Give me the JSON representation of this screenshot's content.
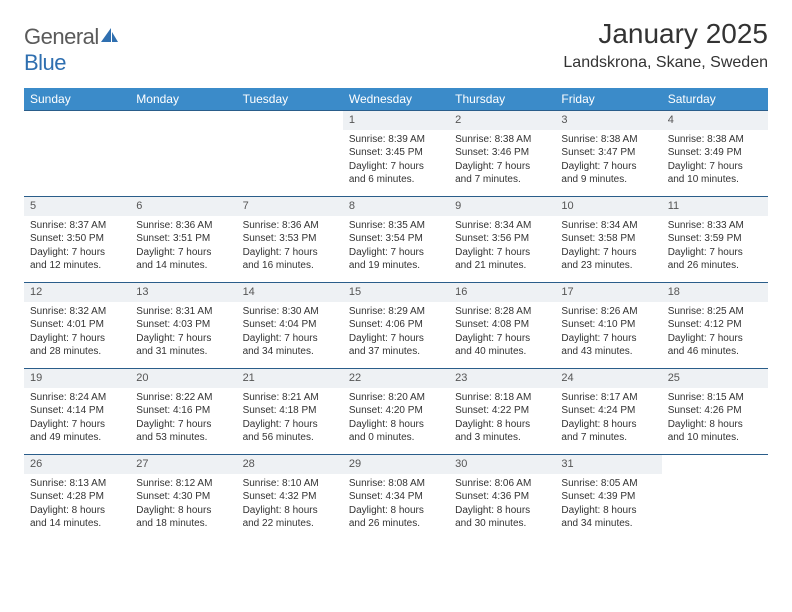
{
  "brand": {
    "part1": "General",
    "part2": "Blue"
  },
  "title": "January 2025",
  "location": "Landskrona, Skane, Sweden",
  "colors": {
    "header_bg": "#3b8bc9",
    "header_text": "#ffffff",
    "daynum_bg": "#eef1f4",
    "border": "#2a5d8a",
    "brand_gray": "#5a5a5a",
    "brand_blue": "#2f6fb0"
  },
  "typography": {
    "title_fontsize": 28,
    "location_fontsize": 16,
    "dayheader_fontsize": 12,
    "cell_fontsize": 10
  },
  "day_headers": [
    "Sunday",
    "Monday",
    "Tuesday",
    "Wednesday",
    "Thursday",
    "Friday",
    "Saturday"
  ],
  "weeks": [
    [
      {
        "n": "",
        "sr": "",
        "ss": "",
        "dl": ""
      },
      {
        "n": "",
        "sr": "",
        "ss": "",
        "dl": ""
      },
      {
        "n": "",
        "sr": "",
        "ss": "",
        "dl": ""
      },
      {
        "n": "1",
        "sr": "Sunrise: 8:39 AM",
        "ss": "Sunset: 3:45 PM",
        "dl": "Daylight: 7 hours and 6 minutes."
      },
      {
        "n": "2",
        "sr": "Sunrise: 8:38 AM",
        "ss": "Sunset: 3:46 PM",
        "dl": "Daylight: 7 hours and 7 minutes."
      },
      {
        "n": "3",
        "sr": "Sunrise: 8:38 AM",
        "ss": "Sunset: 3:47 PM",
        "dl": "Daylight: 7 hours and 9 minutes."
      },
      {
        "n": "4",
        "sr": "Sunrise: 8:38 AM",
        "ss": "Sunset: 3:49 PM",
        "dl": "Daylight: 7 hours and 10 minutes."
      }
    ],
    [
      {
        "n": "5",
        "sr": "Sunrise: 8:37 AM",
        "ss": "Sunset: 3:50 PM",
        "dl": "Daylight: 7 hours and 12 minutes."
      },
      {
        "n": "6",
        "sr": "Sunrise: 8:36 AM",
        "ss": "Sunset: 3:51 PM",
        "dl": "Daylight: 7 hours and 14 minutes."
      },
      {
        "n": "7",
        "sr": "Sunrise: 8:36 AM",
        "ss": "Sunset: 3:53 PM",
        "dl": "Daylight: 7 hours and 16 minutes."
      },
      {
        "n": "8",
        "sr": "Sunrise: 8:35 AM",
        "ss": "Sunset: 3:54 PM",
        "dl": "Daylight: 7 hours and 19 minutes."
      },
      {
        "n": "9",
        "sr": "Sunrise: 8:34 AM",
        "ss": "Sunset: 3:56 PM",
        "dl": "Daylight: 7 hours and 21 minutes."
      },
      {
        "n": "10",
        "sr": "Sunrise: 8:34 AM",
        "ss": "Sunset: 3:58 PM",
        "dl": "Daylight: 7 hours and 23 minutes."
      },
      {
        "n": "11",
        "sr": "Sunrise: 8:33 AM",
        "ss": "Sunset: 3:59 PM",
        "dl": "Daylight: 7 hours and 26 minutes."
      }
    ],
    [
      {
        "n": "12",
        "sr": "Sunrise: 8:32 AM",
        "ss": "Sunset: 4:01 PM",
        "dl": "Daylight: 7 hours and 28 minutes."
      },
      {
        "n": "13",
        "sr": "Sunrise: 8:31 AM",
        "ss": "Sunset: 4:03 PM",
        "dl": "Daylight: 7 hours and 31 minutes."
      },
      {
        "n": "14",
        "sr": "Sunrise: 8:30 AM",
        "ss": "Sunset: 4:04 PM",
        "dl": "Daylight: 7 hours and 34 minutes."
      },
      {
        "n": "15",
        "sr": "Sunrise: 8:29 AM",
        "ss": "Sunset: 4:06 PM",
        "dl": "Daylight: 7 hours and 37 minutes."
      },
      {
        "n": "16",
        "sr": "Sunrise: 8:28 AM",
        "ss": "Sunset: 4:08 PM",
        "dl": "Daylight: 7 hours and 40 minutes."
      },
      {
        "n": "17",
        "sr": "Sunrise: 8:26 AM",
        "ss": "Sunset: 4:10 PM",
        "dl": "Daylight: 7 hours and 43 minutes."
      },
      {
        "n": "18",
        "sr": "Sunrise: 8:25 AM",
        "ss": "Sunset: 4:12 PM",
        "dl": "Daylight: 7 hours and 46 minutes."
      }
    ],
    [
      {
        "n": "19",
        "sr": "Sunrise: 8:24 AM",
        "ss": "Sunset: 4:14 PM",
        "dl": "Daylight: 7 hours and 49 minutes."
      },
      {
        "n": "20",
        "sr": "Sunrise: 8:22 AM",
        "ss": "Sunset: 4:16 PM",
        "dl": "Daylight: 7 hours and 53 minutes."
      },
      {
        "n": "21",
        "sr": "Sunrise: 8:21 AM",
        "ss": "Sunset: 4:18 PM",
        "dl": "Daylight: 7 hours and 56 minutes."
      },
      {
        "n": "22",
        "sr": "Sunrise: 8:20 AM",
        "ss": "Sunset: 4:20 PM",
        "dl": "Daylight: 8 hours and 0 minutes."
      },
      {
        "n": "23",
        "sr": "Sunrise: 8:18 AM",
        "ss": "Sunset: 4:22 PM",
        "dl": "Daylight: 8 hours and 3 minutes."
      },
      {
        "n": "24",
        "sr": "Sunrise: 8:17 AM",
        "ss": "Sunset: 4:24 PM",
        "dl": "Daylight: 8 hours and 7 minutes."
      },
      {
        "n": "25",
        "sr": "Sunrise: 8:15 AM",
        "ss": "Sunset: 4:26 PM",
        "dl": "Daylight: 8 hours and 10 minutes."
      }
    ],
    [
      {
        "n": "26",
        "sr": "Sunrise: 8:13 AM",
        "ss": "Sunset: 4:28 PM",
        "dl": "Daylight: 8 hours and 14 minutes."
      },
      {
        "n": "27",
        "sr": "Sunrise: 8:12 AM",
        "ss": "Sunset: 4:30 PM",
        "dl": "Daylight: 8 hours and 18 minutes."
      },
      {
        "n": "28",
        "sr": "Sunrise: 8:10 AM",
        "ss": "Sunset: 4:32 PM",
        "dl": "Daylight: 8 hours and 22 minutes."
      },
      {
        "n": "29",
        "sr": "Sunrise: 8:08 AM",
        "ss": "Sunset: 4:34 PM",
        "dl": "Daylight: 8 hours and 26 minutes."
      },
      {
        "n": "30",
        "sr": "Sunrise: 8:06 AM",
        "ss": "Sunset: 4:36 PM",
        "dl": "Daylight: 8 hours and 30 minutes."
      },
      {
        "n": "31",
        "sr": "Sunrise: 8:05 AM",
        "ss": "Sunset: 4:39 PM",
        "dl": "Daylight: 8 hours and 34 minutes."
      },
      {
        "n": "",
        "sr": "",
        "ss": "",
        "dl": ""
      }
    ]
  ]
}
